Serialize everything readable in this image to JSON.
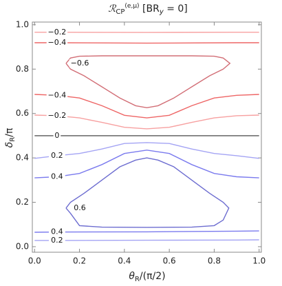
{
  "chart_data": {
    "type": "contour",
    "title": [
      "ℛ",
      "CP",
      "(e,μ)",
      " [BR",
      "y",
      " = 0]"
    ],
    "x_label": [
      "θ",
      "R",
      "/(π/2)"
    ],
    "y_label": [
      "δ",
      "R",
      "/π"
    ],
    "xlim": [
      -0.01,
      1.01
    ],
    "ylim": [
      -0.025,
      1.012
    ],
    "xticks": [
      {
        "value": 0,
        "label": "0.0"
      },
      0.2,
      0.4,
      0.6,
      0.8,
      {
        "value": 1,
        "label": "1.0"
      }
    ],
    "yticks": [
      {
        "value": 0,
        "label": "0.0"
      },
      0.2,
      0.4,
      0.6,
      0.8,
      {
        "value": 1,
        "label": "1.0"
      }
    ],
    "series": [
      {
        "name": "−0.2",
        "color": "#f7a0a0",
        "x": [
          0,
          0.1,
          0.5,
          0.9,
          1
        ],
        "y": [
          0.966,
          0.966,
          0.965,
          0.966,
          0.966
        ]
      },
      {
        "name": "−0.4",
        "color": "#ee6565",
        "x": [
          0,
          0.1,
          0.5,
          0.9,
          1
        ],
        "y": [
          0.919,
          0.919,
          0.917,
          0.919,
          0.919
        ]
      },
      {
        "name": "−0.6",
        "color": "#d26e76",
        "x": [
          0.14,
          0.16,
          0.2,
          0.3,
          0.4,
          0.5,
          0.6,
          0.7,
          0.8,
          0.84,
          0.87,
          0.84,
          0.78,
          0.7,
          0.62,
          0.55,
          0.5,
          0.45,
          0.38,
          0.3,
          0.22,
          0.16,
          0.14
        ],
        "y": [
          0.826,
          0.85,
          0.858,
          0.86,
          0.86,
          0.86,
          0.86,
          0.86,
          0.858,
          0.85,
          0.826,
          0.8,
          0.77,
          0.72,
          0.67,
          0.635,
          0.626,
          0.635,
          0.67,
          0.72,
          0.77,
          0.8,
          0.826
        ]
      },
      {
        "name": "−0.4",
        "color": "#ee6565",
        "x": [
          0,
          0.1,
          0.2,
          0.3,
          0.4,
          0.5,
          0.6,
          0.7,
          0.8,
          0.9,
          1
        ],
        "y": [
          0.686,
          0.682,
          0.67,
          0.635,
          0.592,
          0.58,
          0.592,
          0.635,
          0.67,
          0.682,
          0.686
        ]
      },
      {
        "name": "−0.2",
        "color": "#f7a0a0",
        "x": [
          0,
          0.1,
          0.2,
          0.3,
          0.4,
          0.5,
          0.6,
          0.7,
          0.8,
          0.9,
          1
        ],
        "y": [
          0.593,
          0.59,
          0.58,
          0.56,
          0.538,
          0.531,
          0.538,
          0.56,
          0.58,
          0.59,
          0.593
        ]
      },
      {
        "name": "0",
        "color": "#555555",
        "x": [
          0,
          0.1,
          1
        ],
        "y": [
          0.5,
          0.5,
          0.5
        ]
      },
      {
        "name": "0.2",
        "color": "#a4a4f4",
        "x": [
          0,
          0.1,
          0.2,
          0.3,
          0.4,
          0.5,
          0.6,
          0.7,
          0.8,
          0.9,
          1
        ],
        "y": [
          0.398,
          0.41,
          0.42,
          0.44,
          0.465,
          0.469,
          0.465,
          0.44,
          0.42,
          0.41,
          0.398
        ]
      },
      {
        "name": "0.4",
        "color": "#7a7aee",
        "x": [
          0,
          0.1,
          0.2,
          0.3,
          0.4,
          0.5,
          0.6,
          0.7,
          0.8,
          0.9,
          1
        ],
        "y": [
          0.31,
          0.315,
          0.33,
          0.37,
          0.42,
          0.435,
          0.42,
          0.37,
          0.33,
          0.315,
          0.31
        ]
      },
      {
        "name": "0.6",
        "color": "#6c6cd0",
        "x": [
          0.14,
          0.16,
          0.2,
          0.3,
          0.5,
          0.7,
          0.8,
          0.84,
          0.865,
          0.84,
          0.78,
          0.7,
          0.62,
          0.55,
          0.5,
          0.45,
          0.38,
          0.3,
          0.22,
          0.16,
          0.14
        ],
        "y": [
          0.174,
          0.15,
          0.095,
          0.088,
          0.087,
          0.088,
          0.095,
          0.12,
          0.174,
          0.2,
          0.24,
          0.3,
          0.36,
          0.39,
          0.4,
          0.39,
          0.36,
          0.3,
          0.24,
          0.2,
          0.174
        ]
      },
      {
        "name": "0.4",
        "color": "#7a7aee",
        "x": [
          0,
          0.1,
          0.5,
          0.9,
          1
        ],
        "y": [
          0.065,
          0.066,
          0.067,
          0.07,
          0.071
        ]
      },
      {
        "name": "0.2",
        "color": "#a4a4f4",
        "x": [
          0,
          0.1,
          0.5,
          0.9,
          1
        ],
        "y": [
          0.028,
          0.028,
          0.029,
          0.03,
          0.031
        ]
      }
    ]
  }
}
